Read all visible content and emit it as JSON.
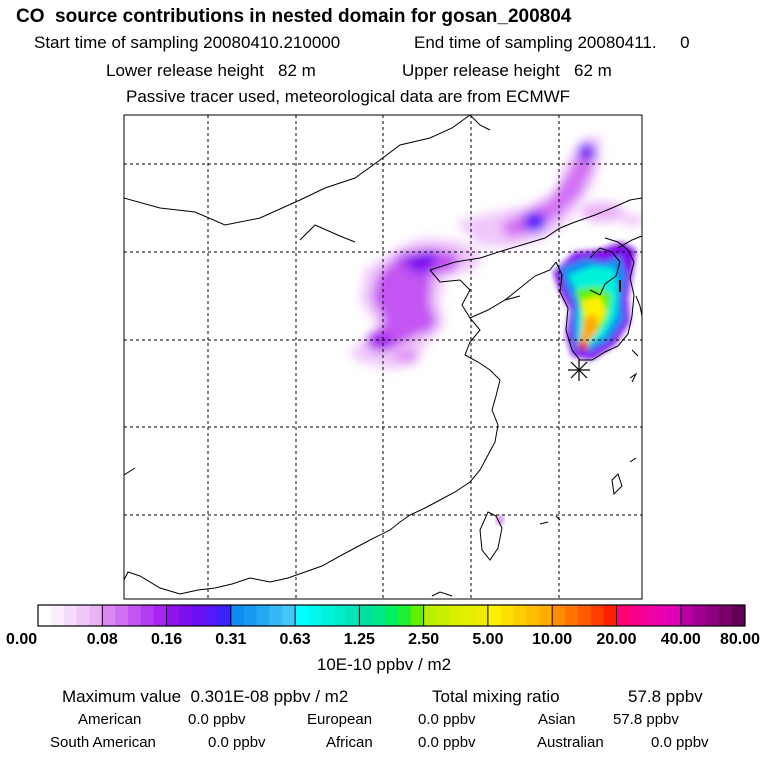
{
  "header": {
    "title": "CO  source contributions in nested domain for gosan_200804",
    "start_sampling": "Start time of sampling 20080410.210000",
    "end_sampling": "End time of sampling 20080411.     0",
    "lower_release": "Lower release height   82 m",
    "upper_release": "Upper release height   62 m",
    "tracer_note": "Passive tracer used, meteorological data are from ECMWF"
  },
  "chart_data": {
    "type": "heatmap",
    "title": "CO  source contributions in nested domain for gosan_200804",
    "colorbar": {
      "ticks": [
        "0.00",
        "0.08",
        "0.16",
        "0.31",
        "0.63",
        "1.25",
        "2.50",
        "5.00",
        "10.00",
        "20.00",
        "40.00",
        "80.00"
      ],
      "colors": [
        [
          "#ffffff",
          "#fbeefd",
          "#f6dcfb",
          "#f0c8fa",
          "#eab2f8"
        ],
        [
          "#dc88f4",
          "#d170f3",
          "#c355f2",
          "#b53cf1",
          "#a824ef"
        ],
        [
          "#9012ec",
          "#7d0ef0",
          "#6a10f4",
          "#5518f8",
          "#3a22fb"
        ],
        [
          "#0e8af0",
          "#1898f2",
          "#24a8f4",
          "#34b8f6",
          "#44c6f8"
        ],
        [
          "#00ffff",
          "#00f8ee",
          "#00f2dc",
          "#00ebca",
          "#00e4b8"
        ],
        [
          "#00e0a0",
          "#00e888",
          "#00f060",
          "#20f030",
          "#60f000"
        ],
        [
          "#b8f000",
          "#c8f000",
          "#d8f000",
          "#e4ee00",
          "#f0ec00"
        ],
        [
          "#fff000",
          "#ffdf00",
          "#ffce00",
          "#ffbd00",
          "#ffac00"
        ],
        [
          "#ff8c00",
          "#ff7400",
          "#ff5c00",
          "#ff4000",
          "#ff2000"
        ],
        [
          "#ff0070",
          "#f8008c",
          "#f200a0",
          "#ea00b0",
          "#e000b8"
        ],
        [
          "#b400a0",
          "#a00090",
          "#8c0080",
          "#780068",
          "#600050"
        ]
      ],
      "units": "10E-10 ppbv / m2"
    },
    "receptor": "gosan",
    "maximum": "0.301E-08",
    "total_mixing_ratio_ppbv": 57.8
  },
  "summary": {
    "max_label": "Maximum value  0.301E-08 ppbv / m2",
    "total_label": "Total mixing ratio",
    "total_value": "57.8 ppbv",
    "regions": [
      {
        "name": "American",
        "value": "0.0 ppbv"
      },
      {
        "name": "European",
        "value": "0.0 ppbv"
      },
      {
        "name": "Asian",
        "value": "57.8 ppbv"
      },
      {
        "name": "South American",
        "value": "0.0 ppbv"
      },
      {
        "name": "African",
        "value": "0.0 ppbv"
      },
      {
        "name": "Australian",
        "value": "0.0 ppbv"
      }
    ]
  }
}
